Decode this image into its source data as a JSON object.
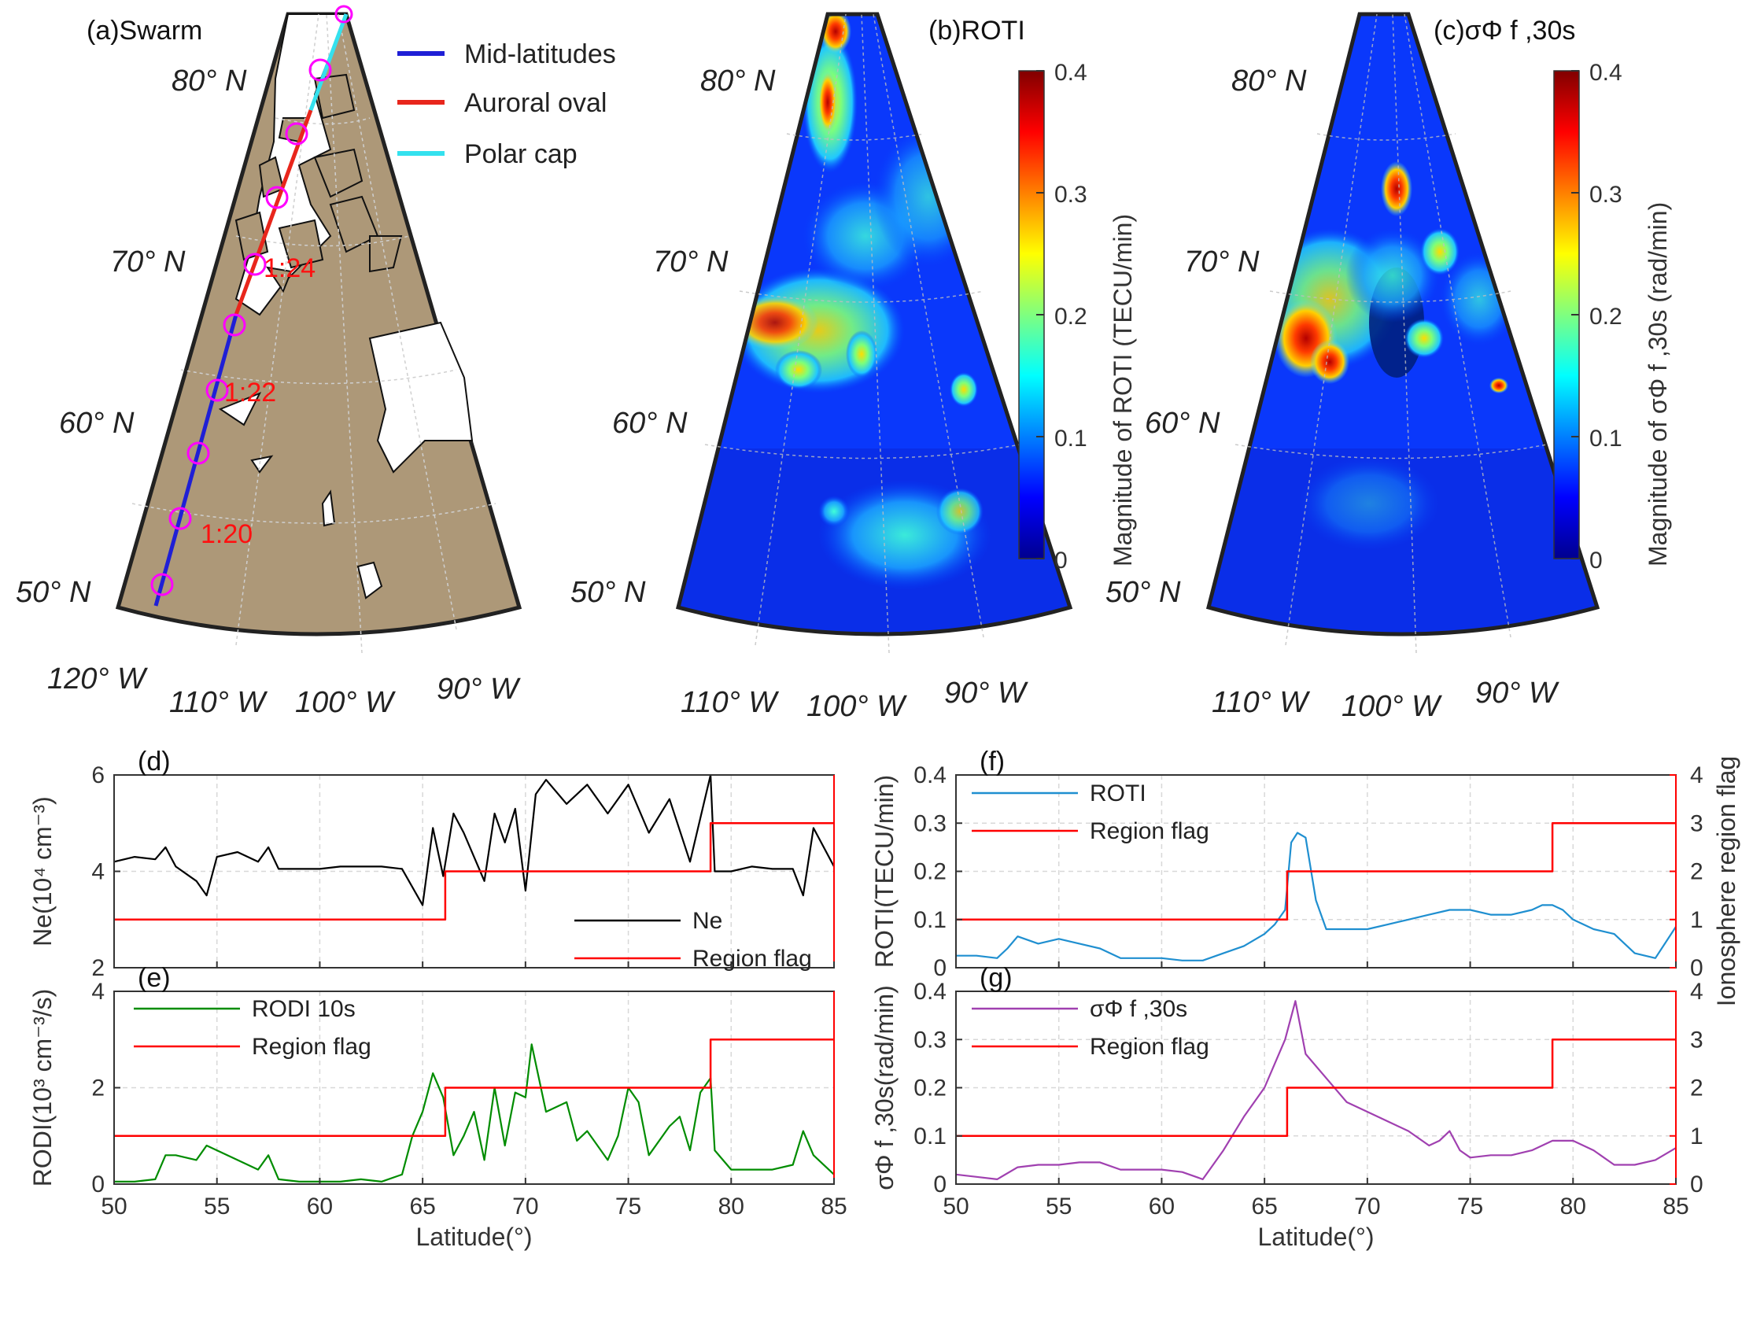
{
  "top": {
    "panel_a": {
      "label": "(a)Swarm",
      "legend": [
        "Mid-latitudes",
        "Auroral oval",
        "Polar cap"
      ],
      "legend_colors": [
        "#1f1fd6",
        "#e8261c",
        "#34e1ee"
      ],
      "times": [
        "1:24",
        "1:22",
        "1:20"
      ],
      "lat_labels": [
        "80° N",
        "70° N",
        "60° N",
        "50° N"
      ],
      "lon_labels": [
        "120° W",
        "110° W",
        "100° W",
        "90° W"
      ]
    },
    "panel_b": {
      "label": "(b)ROTI",
      "lat_labels": [
        "80° N",
        "70° N",
        "60° N",
        "50° N"
      ],
      "lon_labels": [
        "110° W",
        "100° W",
        "90° W"
      ],
      "colorbar_ticks": [
        "0.4",
        "0.3",
        "0.2",
        "0.1",
        "0"
      ],
      "colorbar_label": "Magnitude of ROTI (TECU/min)"
    },
    "panel_c": {
      "label": "(c)σΦ f ,30s",
      "lat_labels": [
        "80° N",
        "70° N",
        "60° N",
        "50° N"
      ],
      "lon_labels": [
        "110° W",
        "100° W",
        "90° W"
      ],
      "colorbar_ticks": [
        "0.4",
        "0.3",
        "0.2",
        "0.1",
        "0"
      ],
      "colorbar_label": "Magnitude of σΦ f ,30s (rad/min)"
    }
  },
  "chart_data": [
    {
      "type": "line",
      "panel": "(d)",
      "ylabel": "Ne(10⁴ cm⁻³)",
      "ylim": [
        2,
        6
      ],
      "yticks": [
        "2",
        "4",
        "6"
      ],
      "xlim": [
        50,
        85
      ],
      "y2lim": [
        0,
        4
      ],
      "grid": true,
      "legend": "bottom-right",
      "series": [
        {
          "name": "Ne",
          "color": "#000000",
          "x": [
            50,
            51,
            52,
            52.5,
            53,
            54,
            54.5,
            55,
            56,
            57,
            57.5,
            58,
            59,
            60,
            61,
            62,
            63,
            64,
            65,
            65.5,
            66,
            66.5,
            67,
            68,
            68.5,
            69,
            69.5,
            70,
            70.5,
            71,
            72,
            73,
            74,
            75,
            76,
            77,
            78,
            79,
            79.2,
            80,
            81,
            82,
            83,
            83.5,
            84,
            85
          ],
          "y": [
            4.2,
            4.3,
            4.25,
            4.5,
            4.1,
            3.8,
            3.5,
            4.3,
            4.4,
            4.2,
            4.5,
            4.05,
            4.05,
            4.05,
            4.1,
            4.1,
            4.1,
            4.05,
            3.3,
            4.9,
            3.9,
            5.2,
            4.8,
            3.8,
            5.2,
            4.6,
            5.3,
            3.6,
            5.6,
            5.9,
            5.4,
            5.8,
            5.2,
            5.8,
            4.8,
            5.5,
            4.2,
            6.0,
            4.0,
            4.0,
            4.1,
            4.05,
            4.05,
            3.5,
            4.9,
            4.1
          ]
        },
        {
          "name": "Region flag",
          "color": "#ff0000",
          "axis": "right",
          "x": [
            50,
            66.1,
            66.1,
            79,
            79,
            85
          ],
          "y": [
            1,
            1,
            2,
            2,
            3,
            3
          ]
        }
      ]
    },
    {
      "type": "line",
      "panel": "(e)",
      "ylabel": "RODI(10³ cm⁻³/s)",
      "ylim": [
        0,
        4
      ],
      "yticks": [
        "0",
        "2",
        "4"
      ],
      "xlim": [
        50,
        85
      ],
      "y2lim": [
        0,
        4
      ],
      "grid": true,
      "legend": "top-left",
      "series": [
        {
          "name": "RODI 10s",
          "color": "#008c00",
          "x": [
            50,
            51,
            52,
            52.5,
            53,
            54,
            54.5,
            55,
            56,
            57,
            57.5,
            58,
            59,
            60,
            61,
            62,
            63,
            64,
            64.5,
            65,
            65.5,
            66,
            66.5,
            67,
            67.5,
            68,
            68.5,
            69,
            69.5,
            70,
            70.3,
            71,
            72,
            72.5,
            73,
            74,
            74.5,
            75,
            75.5,
            76,
            77,
            77.5,
            78,
            78.5,
            79,
            79.2,
            80,
            81,
            82,
            83,
            83.5,
            84,
            85
          ],
          "y": [
            0.05,
            0.05,
            0.1,
            0.6,
            0.6,
            0.5,
            0.8,
            0.7,
            0.5,
            0.3,
            0.6,
            0.1,
            0.05,
            0.05,
            0.05,
            0.1,
            0.05,
            0.2,
            1.0,
            1.5,
            2.3,
            1.8,
            0.6,
            1.0,
            1.5,
            0.5,
            2.0,
            0.8,
            1.9,
            1.8,
            2.9,
            1.5,
            1.7,
            0.9,
            1.1,
            0.5,
            1.0,
            2.0,
            1.7,
            0.6,
            1.2,
            1.4,
            0.7,
            1.9,
            2.2,
            0.7,
            0.3,
            0.3,
            0.3,
            0.4,
            1.1,
            0.6,
            0.2
          ]
        },
        {
          "name": "Region flag",
          "color": "#ff0000",
          "axis": "right",
          "x": [
            50,
            66.1,
            66.1,
            79,
            79,
            85
          ],
          "y": [
            1,
            1,
            2,
            2,
            3,
            3
          ]
        }
      ]
    },
    {
      "type": "line",
      "panel": "(f)",
      "ylabel": "ROTI(TECU/min)",
      "ylim": [
        0,
        0.4
      ],
      "yticks": [
        "0",
        "0.1",
        "0.2",
        "0.3",
        "0.4"
      ],
      "xlim": [
        50,
        85
      ],
      "y2lim": [
        0,
        4
      ],
      "y2ticks": [
        "0",
        "1",
        "2",
        "3",
        "4"
      ],
      "grid": true,
      "legend": "top-left",
      "series": [
        {
          "name": "ROTI",
          "color": "#1f8fd0",
          "x": [
            50,
            51,
            52,
            52.5,
            53,
            54,
            55,
            56,
            57,
            58,
            59,
            60,
            61,
            62,
            63,
            64,
            65,
            65.5,
            66,
            66.3,
            66.6,
            67,
            67.5,
            68,
            68.5,
            69,
            70,
            71,
            72,
            73,
            74,
            75,
            76,
            77,
            78,
            78.5,
            79,
            79.5,
            80,
            81,
            82,
            83,
            84,
            85
          ],
          "y": [
            0.025,
            0.025,
            0.02,
            0.04,
            0.065,
            0.05,
            0.06,
            0.05,
            0.04,
            0.02,
            0.02,
            0.02,
            0.015,
            0.015,
            0.03,
            0.045,
            0.07,
            0.09,
            0.12,
            0.26,
            0.28,
            0.27,
            0.14,
            0.08,
            0.08,
            0.08,
            0.08,
            0.09,
            0.1,
            0.11,
            0.12,
            0.12,
            0.11,
            0.11,
            0.12,
            0.13,
            0.13,
            0.12,
            0.1,
            0.08,
            0.07,
            0.03,
            0.02,
            0.085
          ]
        },
        {
          "name": "Region flag",
          "color": "#ff0000",
          "axis": "right",
          "x": [
            50,
            66.1,
            66.1,
            79,
            79,
            85
          ],
          "y": [
            1,
            1,
            2,
            2,
            3,
            3
          ]
        }
      ]
    },
    {
      "type": "line",
      "panel": "(g)",
      "ylabel": "σΦ f ,30s(rad/min)",
      "ylim": [
        0,
        0.4
      ],
      "yticks": [
        "0",
        "0.1",
        "0.2",
        "0.3",
        "0.4"
      ],
      "xlim": [
        50,
        85
      ],
      "xlabel": "Latitude(°)",
      "y2lim": [
        0,
        4
      ],
      "y2ticks": [
        "0",
        "1",
        "2",
        "3",
        "4"
      ],
      "y2label": "Ionosphere region flag",
      "grid": true,
      "legend": "top-left",
      "series": [
        {
          "name": "σΦ f ,30s",
          "color": "#a040b0",
          "x": [
            50,
            51,
            52,
            53,
            54,
            55,
            56,
            57,
            58,
            59,
            60,
            61,
            62,
            62.5,
            63,
            64,
            65,
            66,
            66.5,
            67,
            68,
            69,
            70,
            71,
            72,
            73,
            73.5,
            74,
            74.5,
            75,
            76,
            77,
            78,
            79,
            80,
            81,
            82,
            83,
            84,
            85
          ],
          "y": [
            0.02,
            0.015,
            0.01,
            0.035,
            0.04,
            0.04,
            0.045,
            0.045,
            0.03,
            0.03,
            0.03,
            0.025,
            0.01,
            0.04,
            0.07,
            0.14,
            0.2,
            0.3,
            0.38,
            0.27,
            0.22,
            0.17,
            0.15,
            0.13,
            0.11,
            0.08,
            0.09,
            0.11,
            0.07,
            0.055,
            0.06,
            0.06,
            0.07,
            0.09,
            0.09,
            0.07,
            0.04,
            0.04,
            0.05,
            0.075
          ]
        },
        {
          "name": "Region flag",
          "color": "#ff0000",
          "axis": "right",
          "x": [
            50,
            66.1,
            66.1,
            79,
            79,
            85
          ],
          "y": [
            1,
            1,
            2,
            2,
            3,
            3
          ]
        }
      ]
    }
  ],
  "xaxis": {
    "ticks": [
      "50",
      "55",
      "60",
      "65",
      "70",
      "75",
      "80",
      "85"
    ],
    "label": "Latitude(°)"
  }
}
